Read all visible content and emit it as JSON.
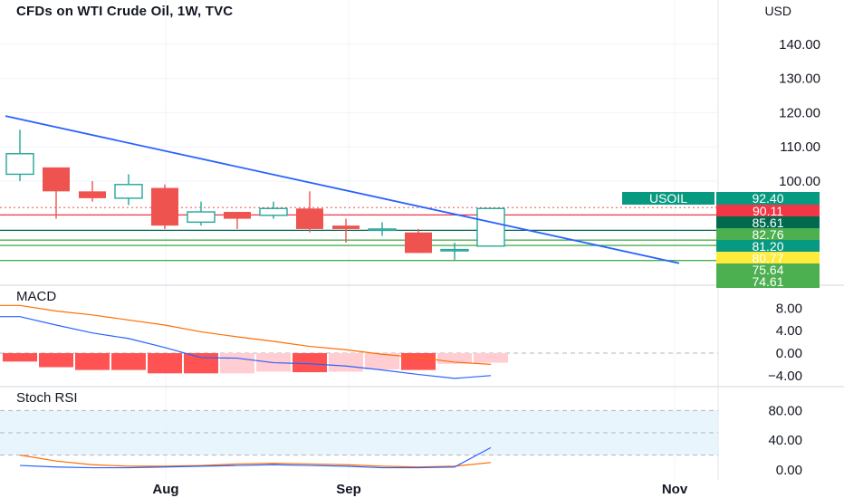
{
  "header": {
    "title": "CFDs on WTI Crude Oil, 1W, TVC",
    "currency": "USD"
  },
  "colors": {
    "up": "#26a69a",
    "down": "#ef5350",
    "trendline": "#2962ff",
    "hline_red": "#f23645",
    "hline_green": "#4caf50",
    "hline_dark": "#006a4e",
    "macd_line": "#2962ff",
    "signal_line": "#ff6d00",
    "hist_neg_strong": "#ff5252",
    "hist_neg_weak": "#ffcdd2",
    "rsi_band": "#e3f2fd"
  },
  "chart_data": [
    {
      "type": "candlestick",
      "title": "CFDs on WTI Crude Oil, 1W, TVC",
      "unit": "USD",
      "y_ticks": [
        "140.00",
        "130.00",
        "120.00",
        "110.00",
        "100.00"
      ],
      "x_ticks": [
        "Aug",
        "Sep",
        "Nov"
      ],
      "candles": [
        {
          "open": 102,
          "high": 115,
          "low": 100,
          "close": 108
        },
        {
          "open": 104,
          "high": 104,
          "low": 89,
          "close": 97
        },
        {
          "open": 97,
          "high": 100,
          "low": 94,
          "close": 95
        },
        {
          "open": 95,
          "high": 102,
          "low": 93,
          "close": 99
        },
        {
          "open": 98,
          "high": 99,
          "low": 86,
          "close": 87
        },
        {
          "open": 88,
          "high": 94,
          "low": 87,
          "close": 91
        },
        {
          "open": 91,
          "high": 91,
          "low": 86,
          "close": 89
        },
        {
          "open": 90,
          "high": 94,
          "low": 89,
          "close": 92
        },
        {
          "open": 92,
          "high": 97,
          "low": 85,
          "close": 86
        },
        {
          "open": 87,
          "high": 89,
          "low": 82,
          "close": 86
        },
        {
          "open": 86,
          "high": 88,
          "low": 84,
          "close": 86
        },
        {
          "open": 85,
          "high": 86,
          "low": 79,
          "close": 79
        },
        {
          "open": 80,
          "high": 82,
          "low": 77,
          "close": 80
        },
        {
          "open": 81,
          "high": 92,
          "low": 81,
          "close": 92
        }
      ],
      "price_tags": [
        {
          "label": "USOIL",
          "value": "92.40",
          "color": "#089981"
        },
        {
          "value": "90.11",
          "color": "#f23645"
        },
        {
          "value": "85.61",
          "color": "#006a4e"
        },
        {
          "value": "82.76",
          "color": "#4caf50"
        },
        {
          "value": "81.20",
          "color": "#089981"
        },
        {
          "value": "80.77",
          "color": "#ffeb3b"
        },
        {
          "value": "75.64",
          "color": "#4caf50"
        },
        {
          "value": "74.61",
          "color": "#4caf50"
        }
      ],
      "horizontal_levels": [
        90.11,
        85.61,
        82.76,
        81.2,
        76.8
      ],
      "trendline": {
        "from": {
          "index": -0.4,
          "price": 119
        },
        "to": {
          "index": 18.2,
          "price": 76
        }
      }
    },
    {
      "type": "macd",
      "label": "MACD",
      "y_ticks": [
        "8.00",
        "4.00",
        "0.00",
        "−4.00"
      ],
      "histogram": [
        -1.5,
        -2.5,
        -3.0,
        -3.0,
        -3.6,
        -3.6,
        -3.6,
        -3.3,
        -3.4,
        -3.3,
        -2.9,
        -3.0,
        -1.9,
        -1.7
      ],
      "histogram_strong": [
        true,
        true,
        true,
        true,
        true,
        true,
        false,
        false,
        true,
        false,
        false,
        true,
        false,
        false
      ],
      "macd_line": [
        6.5,
        5.0,
        3.6,
        2.6,
        1.0,
        -0.8,
        -0.9,
        -1.7,
        -1.9,
        -2.3,
        -3.0,
        -3.8,
        -4.5,
        -4.0
      ],
      "signal_line": [
        8.5,
        7.5,
        6.8,
        5.9,
        5.0,
        3.8,
        2.9,
        2.1,
        1.2,
        0.6,
        -0.2,
        -0.8,
        -1.6,
        -2.0
      ]
    },
    {
      "type": "line",
      "label": "Stoch RSI",
      "y_ticks": [
        "80.00",
        "40.00",
        "0.00"
      ],
      "band": [
        20,
        80
      ],
      "k_line": [
        6,
        4,
        3,
        3,
        4,
        5,
        6,
        7,
        6,
        5,
        3,
        3,
        4,
        30
      ],
      "d_line": [
        20,
        12,
        7,
        5,
        5,
        6,
        8,
        9,
        8,
        7,
        5,
        4,
        5,
        10
      ]
    }
  ]
}
